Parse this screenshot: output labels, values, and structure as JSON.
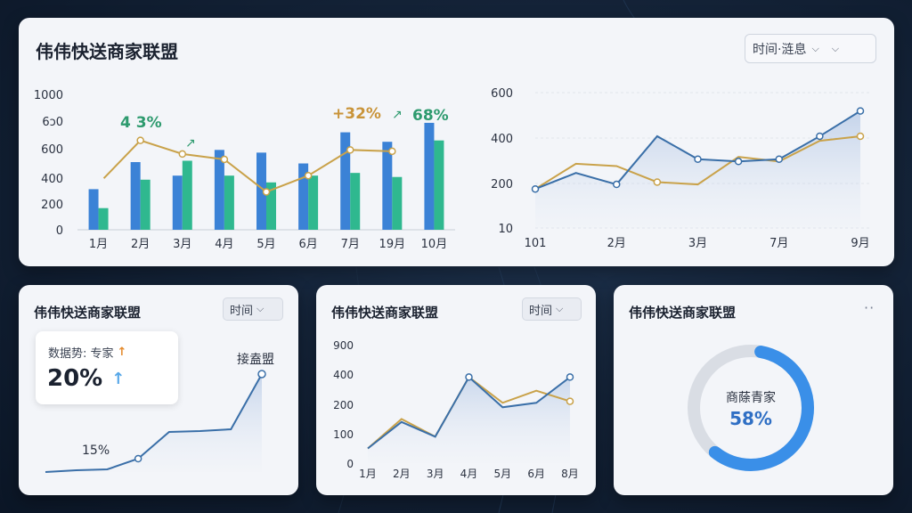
{
  "colors": {
    "blue": "#3b82d6",
    "green": "#2fb88f",
    "gold": "#c9a24a",
    "line_blue": "#3a6fa8",
    "donut_blue": "#3a8fe8",
    "donut_gray": "#d9dde4"
  },
  "main": {
    "title": "伟伟快送商家联盟",
    "select_label": "时间·涟息",
    "bar_chart": {
      "y_ticks": [
        "1000",
        "6ɔ0",
        "600",
        "400",
        "200",
        "0"
      ],
      "annotations": [
        "4 3%",
        "+32%",
        "68%"
      ]
    },
    "line_chart": {
      "y_ticks": [
        "600",
        "400",
        "200",
        "10"
      ],
      "x_ticks": [
        "101",
        "2月",
        "3月",
        "7月",
        "9月"
      ]
    }
  },
  "card1": {
    "title": "伟伟快送商家联盟",
    "select_label": "时间",
    "info_label": "数据势: 专家",
    "info_value": "20%",
    "start_label": "15%",
    "end_label": "接盍盟"
  },
  "card2": {
    "title": "伟伟快送商家联盟",
    "select_label": "时间",
    "y_ticks": [
      "900",
      "400",
      "200",
      "100",
      "0"
    ],
    "x_ticks": [
      "1月",
      "2月",
      "3月",
      "4月",
      "5月",
      "6月",
      "8月"
    ]
  },
  "card3": {
    "title": "伟伟快送商家联盟",
    "menu": "··",
    "donut_label": "商蒢青家",
    "donut_value": "58%",
    "donut_fraction": 0.58
  },
  "chart_data": [
    {
      "type": "bar",
      "categories": [
        "1月",
        "2月",
        "3月",
        "4月",
        "5月",
        "6月",
        "7月",
        "19月",
        "10月"
      ],
      "series": [
        {
          "values": [
            300,
            500,
            400,
            590,
            570,
            490,
            720,
            650,
            790
          ]
        },
        {
          "values": [
            160,
            370,
            510,
            400,
            350,
            400,
            420,
            390,
            660
          ]
        },
        {
          "values": [
            null,
            660,
            560,
            520,
            280,
            400,
            590,
            580,
            null
          ]
        }
      ],
      "ylim": [
        0,
        1000
      ]
    },
    {
      "type": "line",
      "x": [
        "101",
        "",
        "2月",
        "",
        "3月",
        "",
        "7月",
        "",
        "9月"
      ],
      "series": [
        {
          "values": [
            180,
            250,
            200,
            410,
            310,
            300,
            310,
            410,
            520
          ]
        },
        {
          "values": [
            180,
            290,
            280,
            210,
            200,
            320,
            300,
            390,
            410
          ]
        }
      ],
      "ylim": [
        10,
        600
      ]
    },
    {
      "type": "line",
      "series": [
        {
          "values": [
            0,
            2,
            3,
            15,
            45,
            46,
            48,
            110
          ]
        }
      ]
    },
    {
      "type": "line",
      "categories": [
        "1月",
        "2月",
        "3月",
        "4月",
        "5月",
        "6月",
        "8月"
      ],
      "series": [
        {
          "values": [
            50,
            140,
            90,
            380,
            190,
            210,
            380
          ]
        },
        {
          "values": [
            50,
            150,
            90,
            380,
            210,
            290,
            220
          ]
        }
      ],
      "ylim": [
        0,
        900
      ]
    }
  ]
}
